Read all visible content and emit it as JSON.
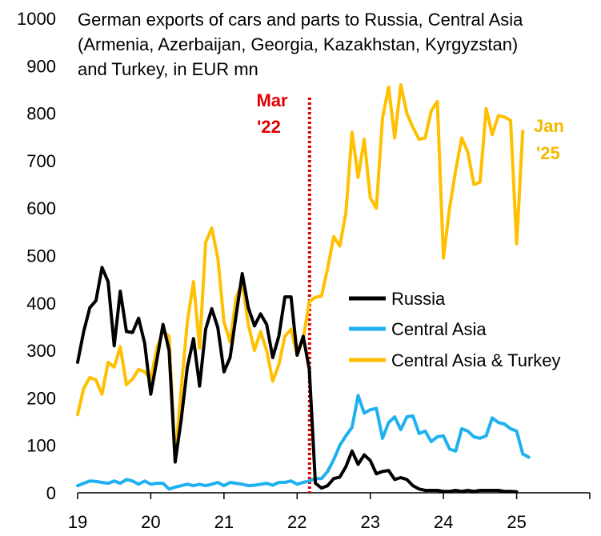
{
  "chart_data": {
    "type": "line",
    "title_lines": [
      "German exports of cars and parts to Russia, Central Asia",
      "(Armenia, Azerbaijan, Georgia, Kazakhstan, Kyrgyzstan)",
      "and Turkey, in EUR mn"
    ],
    "xlabel": "",
    "ylabel": "",
    "xlim": [
      2019,
      2026
    ],
    "ylim": [
      0,
      1000
    ],
    "x_ticks": [
      "19",
      "20",
      "21",
      "22",
      "23",
      "24",
      "25"
    ],
    "y_ticks": [
      0,
      100,
      200,
      300,
      400,
      500,
      600,
      700,
      800,
      900,
      1000
    ],
    "grid": false,
    "legend_position": "center-right",
    "annotations": [
      {
        "lines": [
          "Mar",
          "'22"
        ],
        "x": 2022.17,
        "color": "#e00000",
        "style": "dotted-vertical-line"
      },
      {
        "lines": [
          "Jan",
          "'25"
        ],
        "x": 2025.0,
        "color": "#f5b800"
      }
    ],
    "series": [
      {
        "name": "Russia",
        "color": "#000000",
        "x_start": 2019.0,
        "step_months": 1,
        "values": [
          275,
          340,
          390,
          405,
          475,
          445,
          310,
          425,
          340,
          338,
          368,
          315,
          208,
          280,
          355,
          300,
          65,
          155,
          265,
          325,
          225,
          345,
          388,
          348,
          255,
          285,
          375,
          462,
          390,
          352,
          377,
          355,
          285,
          330,
          413,
          413,
          290,
          330,
          260,
          20,
          10,
          15,
          30,
          33,
          55,
          88,
          60,
          80,
          68,
          40,
          45,
          47,
          28,
          32,
          28,
          15,
          8,
          5,
          5,
          5,
          3,
          3,
          5,
          3,
          5,
          3,
          5,
          5,
          5,
          5,
          3,
          3,
          2
        ]
      },
      {
        "name": "Central Asia",
        "color": "#1fb0f0",
        "x_start": 2019.0,
        "step_months": 1,
        "values": [
          15,
          20,
          25,
          24,
          22,
          20,
          25,
          20,
          28,
          25,
          18,
          25,
          18,
          20,
          20,
          8,
          12,
          15,
          18,
          15,
          18,
          15,
          18,
          22,
          15,
          22,
          20,
          18,
          15,
          16,
          18,
          20,
          16,
          22,
          22,
          25,
          18,
          22,
          25,
          30,
          30,
          45,
          70,
          100,
          120,
          138,
          205,
          168,
          175,
          178,
          115,
          148,
          160,
          133,
          160,
          162,
          125,
          130,
          108,
          118,
          120,
          92,
          88,
          135,
          130,
          118,
          115,
          120,
          158,
          148,
          145,
          135,
          130,
          82,
          75
        ]
      },
      {
        "name": "Central Asia & Turkey",
        "color": "#ffc000",
        "x_start": 2019.0,
        "step_months": 1,
        "values": [
          165,
          220,
          243,
          238,
          208,
          275,
          265,
          308,
          228,
          240,
          260,
          255,
          240,
          305,
          340,
          330,
          70,
          220,
          360,
          445,
          305,
          528,
          558,
          495,
          360,
          318,
          412,
          442,
          355,
          300,
          340,
          300,
          235,
          270,
          330,
          345,
          290,
          325,
          403,
          412,
          415,
          473,
          540,
          520,
          590,
          760,
          665,
          745,
          622,
          600,
          790,
          855,
          748,
          860,
          800,
          770,
          745,
          748,
          805,
          825,
          495,
          600,
          680,
          748,
          718,
          650,
          655,
          810,
          755,
          795,
          792,
          785,
          525,
          762
        ]
      }
    ]
  }
}
